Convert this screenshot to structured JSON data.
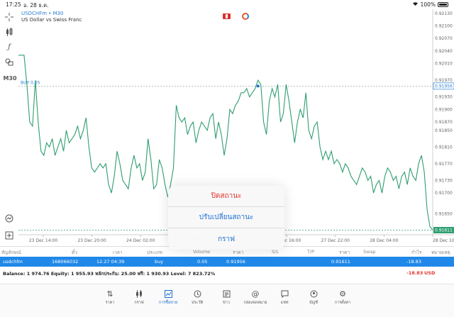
{
  "status_bar": {
    "time": "17:25",
    "date": "อ. 28 ธ.ค.",
    "battery": "100%"
  },
  "chart": {
    "symbol": "USDCHFm • M30",
    "description": "US Dollar vs Swiss Franc",
    "buy_label": "BUY 0.05",
    "buy_price": "0.91956",
    "current_price": "0.91611",
    "toolbar_timeframe": "M30"
  },
  "chart_data": {
    "type": "line",
    "title": "USDCHFm • M30",
    "y_ticks": [
      "0.92130",
      "0.92100",
      "0.92070",
      "0.92040",
      "0.92010",
      "0.91970",
      "0.91956",
      "0.91930",
      "0.91900",
      "0.91870",
      "0.91850",
      "0.91810",
      "0.91770",
      "0.91730",
      "0.91700",
      "0.91650",
      "0.91611"
    ],
    "x_ticks": [
      "23 Dec 14:00",
      "23 Dec 20:00",
      "24 Dec 02:00",
      "24 Dec 08:00",
      "27 Dec 10:00",
      "27 Dec 16:00",
      "27 Dec 22:00",
      "28 Dec 04:00",
      "28 Dec 10:0"
    ],
    "ylim": [
      0.916,
      0.9214
    ],
    "series": [
      {
        "values": [
          0.9203,
          0.9203,
          0.9203,
          0.9196,
          0.9187,
          0.9186,
          0.9197,
          0.9187,
          0.918,
          0.9179,
          0.9182,
          0.9181,
          0.9183,
          0.9179,
          0.9181,
          0.9183,
          0.918,
          0.9185,
          0.9182,
          0.9183,
          0.9184,
          0.9186,
          0.9183,
          0.9185,
          0.9188,
          0.9181,
          0.9176,
          0.9175,
          0.9176,
          0.9177,
          0.9176,
          0.9177,
          0.9172,
          0.917,
          0.9174,
          0.918,
          0.9177,
          0.9173,
          0.9172,
          0.9171,
          0.9176,
          0.9179,
          0.9176,
          0.9177,
          0.9173,
          0.9175,
          0.9183,
          0.9178,
          0.9171,
          0.9172,
          0.9178,
          0.9176,
          0.9172,
          0.9169,
          0.9172,
          0.9176,
          0.9191,
          0.9188,
          0.9187,
          0.9188,
          0.9184,
          0.9186,
          0.9187,
          0.9182,
          0.9185,
          0.9187,
          0.9186,
          0.9185,
          0.9188,
          0.9189,
          0.9183,
          0.9187,
          0.9184,
          0.9179,
          0.9183,
          0.919,
          0.9189,
          0.9191,
          0.9192,
          0.9194,
          0.9194,
          0.9195,
          0.9193,
          0.9194,
          0.9195,
          0.9197,
          0.9196,
          0.9187,
          0.9184,
          0.9192,
          0.9195,
          0.9193,
          0.9196,
          0.9187,
          0.9189,
          0.9196,
          0.9192,
          0.9187,
          0.9182,
          0.9187,
          0.919,
          0.9188,
          0.9194,
          0.9185,
          0.9183,
          0.9186,
          0.9187,
          0.9181,
          0.9178,
          0.918,
          0.9178,
          0.918,
          0.9177,
          0.9178,
          0.9177,
          0.9175,
          0.9177,
          0.9176,
          0.9174,
          0.9173,
          0.9172,
          0.9174,
          0.9176,
          0.9175,
          0.9173,
          0.9174,
          0.917,
          0.9172,
          0.9173,
          0.917,
          0.9174,
          0.9176,
          0.9175,
          0.9173,
          0.9174,
          0.9171,
          0.9174,
          0.9175,
          0.9172,
          0.9176,
          0.9174,
          0.9173,
          0.9177,
          0.9179,
          0.9175,
          0.9166,
          0.9162,
          0.91611
        ]
      }
    ]
  },
  "dialog": {
    "close_position": "ปิดสถานะ",
    "modify_position": "ปรับเปลี่ยนสถานะ",
    "chart": "กราฟ"
  },
  "table": {
    "headers": {
      "symbol": "สัญลักษณ์",
      "ticket": "ตั๋ว",
      "time": "เวลา",
      "type": "ประเภท",
      "volume": "Volume",
      "price": "ราคา",
      "sl": "S/L",
      "tp": "T/P",
      "current_price": "ราคา",
      "swap": "Swap",
      "profit": "กำไร",
      "comment": "หมายเหตุ"
    },
    "row": {
      "symbol": "usdchfm",
      "ticket": "168066032",
      "time": "12.27 04:39",
      "type": "buy",
      "volume": "0.05",
      "price": "0.91956",
      "current_price": "0.91611",
      "profit": "-18.83"
    }
  },
  "account": {
    "summary": "Balance: 1 974.76 Equity: 1 955.93 หลักประกัน: 25.00 ฟรี: 1 930.93 Level: 7 823.72%",
    "profit": "-18.83",
    "currency": "USD"
  },
  "nav": [
    {
      "label": "ราคา",
      "icon": "quotes-icon"
    },
    {
      "label": "กราฟ",
      "icon": "candles-icon"
    },
    {
      "label": "การซื้อขาย",
      "icon": "trade-icon",
      "active": true
    },
    {
      "label": "ประวัติ",
      "icon": "history-icon"
    },
    {
      "label": "ข่าว",
      "icon": "news-icon"
    },
    {
      "label": "กล่องจดหมาย",
      "icon": "mailbox-icon"
    },
    {
      "label": "แชท",
      "icon": "chat-icon"
    },
    {
      "label": "บัญชี",
      "icon": "account-icon"
    },
    {
      "label": "การตั้งค่า",
      "icon": "settings-icon"
    }
  ],
  "colors": {
    "line": "#2e9e6f",
    "accent": "#1f88e8",
    "loss": "#e3332c",
    "buy_level": "#2a7fd4"
  }
}
